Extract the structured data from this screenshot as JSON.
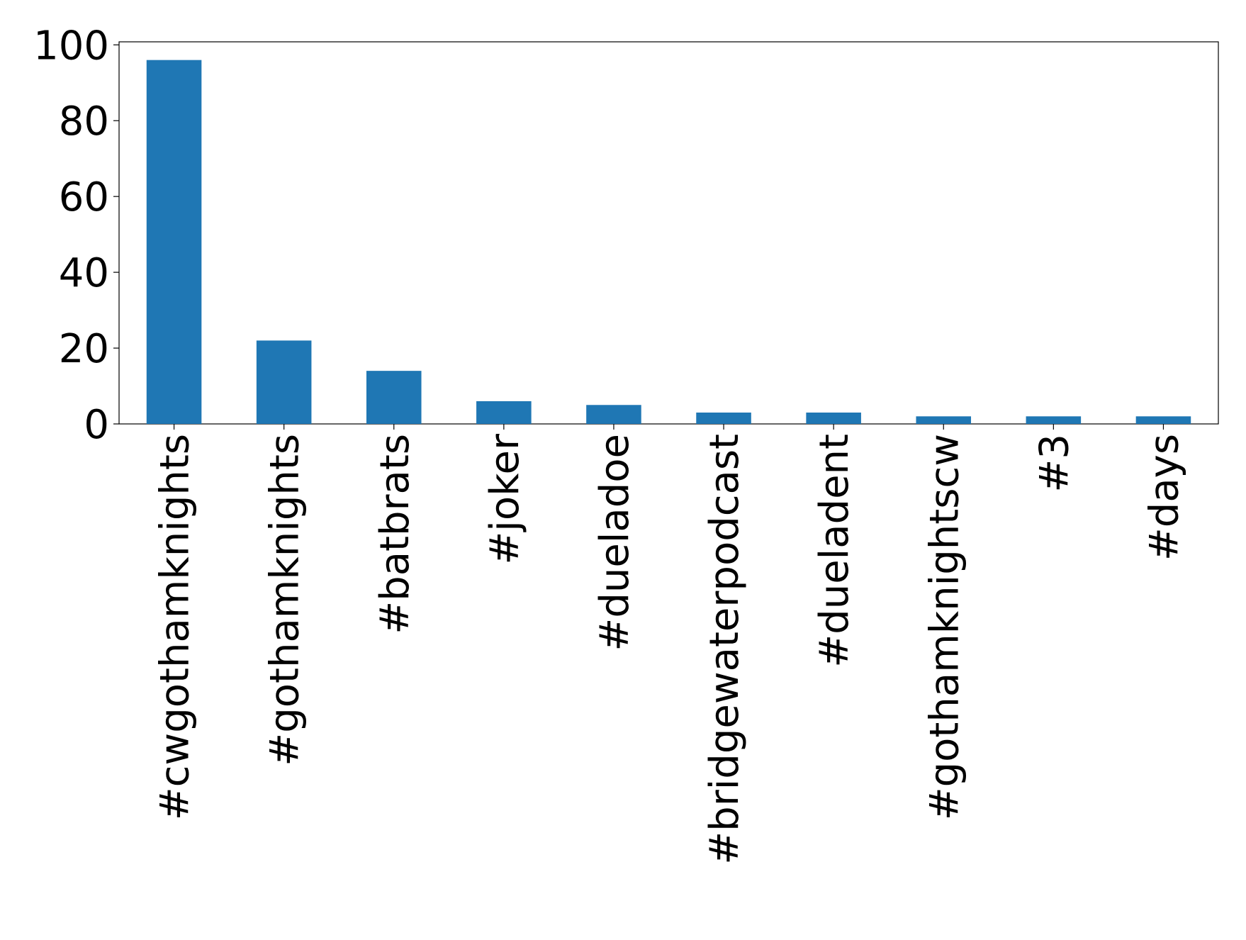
{
  "chart_data": {
    "type": "bar",
    "categories": [
      "#cwgothamknights",
      "#gothamknights",
      "#batbrats",
      "#joker",
      "#dueladoe",
      "#bridgewaterpodcast",
      "#dueladent",
      "#gothamknightscw",
      "#3",
      "#days"
    ],
    "values": [
      96,
      22,
      14,
      6,
      5,
      3,
      3,
      2,
      2,
      2
    ],
    "color": "#1f77b4",
    "ylim": [
      0,
      100.8
    ],
    "yticks": [
      0,
      20,
      40,
      60,
      80,
      100
    ],
    "grid": false
  }
}
